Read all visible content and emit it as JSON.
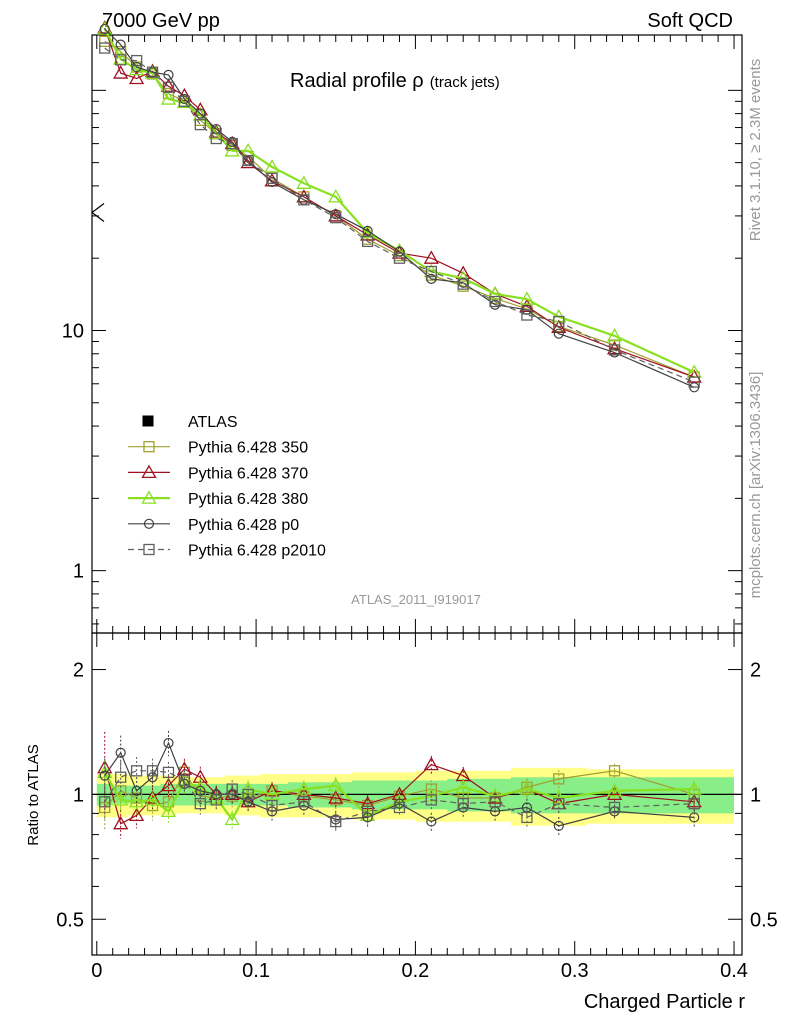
{
  "header": {
    "left": "7000 GeV pp",
    "right": "Soft QCD"
  },
  "title": {
    "main": "Radial profile ",
    "symbol": "ρ",
    "sub": "(track jets)"
  },
  "side": {
    "rivet": "Rivet 3.1.10, ≥ 2.3M events",
    "mcplots": "mcplots.cern.ch [arXiv:1306.3436]"
  },
  "analysis_label": "ATLAS_2011_I919017",
  "colors": {
    "ATLAS": "#000000",
    "p350": "#a0a030",
    "p370": "#a01020",
    "p380": "#88e020",
    "p0": "#404040",
    "p2010": "#606060",
    "band_inner": "#88ee88",
    "band_outer": "#ffff88"
  },
  "chart_data": [
    {
      "type": "line",
      "panel": "main",
      "title": "Radial profile ρ (track jets)",
      "xlabel": "",
      "ylabel": "",
      "y_scale": "log",
      "xlim": [
        -0.003,
        0.405
      ],
      "ylim": [
        0.55,
        170
      ],
      "y_tick_labels": [
        {
          "value": 1,
          "label": "1"
        },
        {
          "value": 10,
          "label": "10"
        }
      ],
      "legend": {
        "placement": "middle-left",
        "entries": [
          {
            "name": "ATLAS",
            "style": "filled-square",
            "color": "#000000"
          },
          {
            "name": "Pythia 6.428 350",
            "style": "open-square",
            "color": "#a0a030"
          },
          {
            "name": "Pythia 6.428 370",
            "style": "open-triangle",
            "color": "#a01020"
          },
          {
            "name": "Pythia 6.428 380",
            "style": "open-triangle",
            "color": "#88e020"
          },
          {
            "name": "Pythia 6.428 p0",
            "style": "open-circle",
            "color": "#404040"
          },
          {
            "name": "Pythia 6.428 p2010",
            "style": "open-square-dashed",
            "color": "#606060"
          }
        ]
      },
      "x": [
        0.005,
        0.015,
        0.025,
        0.035,
        0.045,
        0.055,
        0.065,
        0.075,
        0.085,
        0.095,
        0.11,
        0.13,
        0.15,
        0.17,
        0.19,
        0.21,
        0.23,
        0.25,
        0.27,
        0.29,
        0.325,
        0.375
      ],
      "series": [
        {
          "name": "Pythia 6.428 350",
          "key": "p350",
          "marker": "square",
          "dashed": false,
          "width": 1.2,
          "values": [
            160,
            145,
            125,
            117,
            97,
            90,
            75,
            66,
            59,
            53,
            43,
            36,
            30,
            24,
            20.5,
            17,
            15.3,
            13.6,
            12.3,
            10.4,
            8.7,
            6.4
          ]
        },
        {
          "name": "Pythia 6.428 370",
          "key": "p370",
          "marker": "triangle",
          "dashed": false,
          "width": 1.2,
          "values": [
            182,
            118,
            112,
            120,
            104,
            95,
            83,
            67,
            60,
            50,
            42,
            36,
            30,
            25,
            21,
            20,
            17.3,
            14.2,
            12.6,
            10.3,
            8.4,
            6.4
          ]
        },
        {
          "name": "Pythia 6.428 380",
          "key": "p380",
          "marker": "triangle",
          "dashed": false,
          "width": 2.2,
          "values": [
            180,
            135,
            122,
            118,
            92,
            89,
            79,
            66,
            56,
            56,
            48,
            41,
            36,
            25.5,
            21.5,
            17.6,
            16.5,
            14.2,
            13.5,
            11.4,
            9.5,
            6.7
          ]
        },
        {
          "name": "Pythia 6.428 p0",
          "key": "p0",
          "marker": "circle",
          "dashed": false,
          "width": 1.2,
          "values": [
            180,
            155,
            125,
            119,
            116,
            92,
            80,
            69,
            61,
            51,
            41.5,
            35,
            30.5,
            26,
            21.3,
            16.4,
            15.8,
            12.8,
            12.2,
            9.7,
            8.1,
            5.8
          ]
        },
        {
          "name": "Pythia 6.428 p2010",
          "key": "p2010",
          "marker": "square",
          "dashed": true,
          "width": 1.2,
          "values": [
            150,
            134,
            133,
            119,
            103,
            90,
            72,
            63,
            60,
            51,
            43,
            35,
            29.5,
            23.5,
            20,
            17.6,
            15.6,
            13.2,
            11.6,
            10.9,
            8.3,
            6.1
          ]
        }
      ]
    },
    {
      "type": "line",
      "panel": "ratio",
      "xlabel": "Charged Particle r",
      "ylabel": "Ratio to ATLAS",
      "y_scale": "log",
      "xlim": [
        -0.003,
        0.405
      ],
      "ylim": [
        0.41,
        2.45
      ],
      "y_tick_labels": [
        {
          "value": 0.5,
          "label": "0.5"
        },
        {
          "value": 1,
          "label": "1"
        },
        {
          "value": 2,
          "label": "2"
        }
      ],
      "x_tick_labels": [
        {
          "value": 0,
          "label": "0"
        },
        {
          "value": 0.1,
          "label": "0.1"
        },
        {
          "value": 0.2,
          "label": "0.2"
        },
        {
          "value": 0.3,
          "label": "0.3"
        },
        {
          "value": 0.4,
          "label": "0.4"
        }
      ],
      "reference": 1,
      "band_inner": [
        0.06,
        0.05,
        0.05,
        0.05,
        0.06,
        0.06,
        0.06,
        0.06,
        0.06,
        0.06,
        0.06,
        0.07,
        0.07,
        0.08,
        0.08,
        0.08,
        0.09,
        0.09,
        0.1,
        0.1,
        0.1,
        0.1
      ],
      "band_outer": [
        0.12,
        0.12,
        0.11,
        0.11,
        0.11,
        0.1,
        0.1,
        0.1,
        0.11,
        0.11,
        0.12,
        0.12,
        0.12,
        0.13,
        0.13,
        0.14,
        0.14,
        0.14,
        0.16,
        0.16,
        0.15,
        0.15
      ],
      "series": [
        {
          "name": "Pythia 6.428 350",
          "key": "p350",
          "marker": "square",
          "dashed": false,
          "width": 1.2,
          "values": [
            0.93,
            1.02,
            0.98,
            0.94,
            0.96,
            1.13,
            0.99,
            0.98,
            0.99,
            0.98,
            1.02,
            0.99,
            0.97,
            0.94,
            0.99,
            1.03,
            0.98,
            0.98,
            1.04,
            1.09,
            1.14,
            1.0
          ],
          "errors": [
            0.12,
            0.1,
            0.1,
            0.08,
            0.07,
            0.07,
            0.07,
            0.06,
            0.06,
            0.06,
            0.05,
            0.05,
            0.05,
            0.05,
            0.05,
            0.05,
            0.05,
            0.05,
            0.05,
            0.05,
            0.04,
            0.05
          ]
        },
        {
          "name": "Pythia 6.428 370",
          "key": "p370",
          "marker": "triangle",
          "dashed": false,
          "width": 1.2,
          "values": [
            1.16,
            0.85,
            0.89,
            0.98,
            1.05,
            1.15,
            1.1,
            1.0,
            1.0,
            0.96,
            1.02,
            1.0,
            0.98,
            0.95,
            1.0,
            1.18,
            1.11,
            0.98,
            1.03,
            0.95,
            1.0,
            0.96
          ],
          "errors": [
            0.22,
            0.08,
            0.07,
            0.06,
            0.06,
            0.06,
            0.06,
            0.05,
            0.05,
            0.05,
            0.05,
            0.05,
            0.05,
            0.05,
            0.04,
            0.05,
            0.05,
            0.05,
            0.05,
            0.05,
            0.04,
            0.05
          ]
        },
        {
          "name": "Pythia 6.428 380",
          "key": "p380",
          "marker": "triangle",
          "dashed": false,
          "width": 2.2,
          "values": [
            1.13,
            0.97,
            0.96,
            0.97,
            0.91,
            1.07,
            1.04,
            0.98,
            0.87,
            1.03,
            1.0,
            1.03,
            1.05,
            0.89,
            0.96,
            0.99,
            1.04,
            0.99,
            1.03,
            0.98,
            1.02,
            1.03
          ],
          "errors": [
            0.07,
            0.07,
            0.06,
            0.06,
            0.06,
            0.06,
            0.05,
            0.05,
            0.05,
            0.05,
            0.05,
            0.05,
            0.05,
            0.05,
            0.04,
            0.05,
            0.05,
            0.05,
            0.05,
            0.05,
            0.04,
            0.05
          ]
        },
        {
          "name": "Pythia 6.428 p0",
          "key": "p0",
          "marker": "circle",
          "dashed": false,
          "width": 1.2,
          "values": [
            1.11,
            1.26,
            1.02,
            1.1,
            1.33,
            1.06,
            1.02,
            1.0,
            1.0,
            0.96,
            0.91,
            0.94,
            0.87,
            0.88,
            0.95,
            0.86,
            0.93,
            0.91,
            0.93,
            0.84,
            0.91,
            0.88
          ],
          "errors": [
            0.1,
            0.1,
            0.08,
            0.07,
            0.07,
            0.06,
            0.06,
            0.05,
            0.05,
            0.05,
            0.05,
            0.05,
            0.05,
            0.05,
            0.04,
            0.05,
            0.05,
            0.05,
            0.05,
            0.05,
            0.04,
            0.05
          ]
        },
        {
          "name": "Pythia 6.428 p2010",
          "key": "p2010",
          "marker": "square",
          "dashed": true,
          "width": 1.2,
          "values": [
            0.96,
            1.1,
            1.14,
            1.14,
            1.13,
            1.08,
            0.95,
            0.97,
            1.03,
            1.0,
            0.94,
            0.96,
            0.86,
            0.91,
            0.93,
            0.97,
            0.95,
            0.96,
            0.88,
            0.95,
            0.93,
            0.95
          ],
          "errors": [
            0.1,
            0.09,
            0.08,
            0.07,
            0.06,
            0.06,
            0.06,
            0.05,
            0.05,
            0.05,
            0.05,
            0.05,
            0.05,
            0.05,
            0.04,
            0.05,
            0.05,
            0.05,
            0.05,
            0.05,
            0.04,
            0.05
          ]
        }
      ]
    }
  ]
}
